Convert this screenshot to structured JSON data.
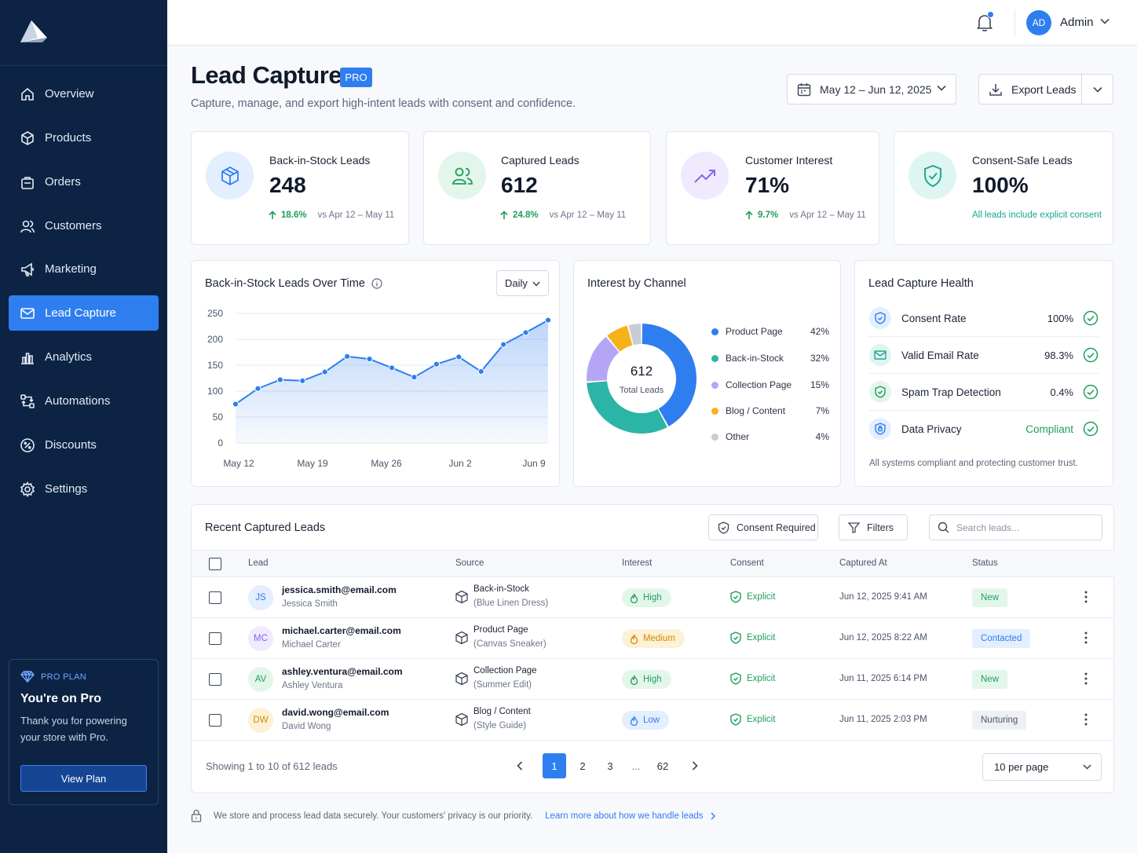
{
  "sidebar": {
    "items": [
      {
        "label": "Overview",
        "icon": "home-icon"
      },
      {
        "label": "Products",
        "icon": "box-icon"
      },
      {
        "label": "Orders",
        "icon": "bag-icon"
      },
      {
        "label": "Customers",
        "icon": "users-icon"
      },
      {
        "label": "Marketing",
        "icon": "megaphone-icon"
      },
      {
        "label": "Lead Capture",
        "icon": "mail-icon",
        "active": true
      },
      {
        "label": "Analytics",
        "icon": "chart-icon"
      },
      {
        "label": "Automations",
        "icon": "workflow-icon"
      },
      {
        "label": "Discounts",
        "icon": "percent-icon"
      },
      {
        "label": "Settings",
        "icon": "gear-icon"
      }
    ],
    "pro": {
      "tag": "PRO PLAN",
      "title": "You're on Pro",
      "text": "Thank you for powering your store with Pro.",
      "button": "View Plan"
    }
  },
  "topbar": {
    "avatar_initials": "AD",
    "user": "Admin"
  },
  "header": {
    "title": "Lead Capture",
    "badge": "PRO",
    "subtitle": "Capture, manage, and export high-intent leads with consent and confidence.",
    "date_range": "May 12 – Jun 12, 2025",
    "export_label": "Export Leads"
  },
  "kpis": [
    {
      "label": "Back-in-Stock Leads",
      "value": "248",
      "change": "18.6%",
      "compare": "vs Apr 12 – May 11"
    },
    {
      "label": "Captured Leads",
      "value": "612",
      "change": "24.8%",
      "compare": "vs Apr 12 – May 11"
    },
    {
      "label": "Customer Interest",
      "value": "71%",
      "change": "9.7%",
      "compare": "vs Apr 12 – May 11"
    },
    {
      "label": "Consent-Safe Leads",
      "value": "100%",
      "note": "All leads include explicit consent"
    }
  ],
  "line_chart": {
    "title": "Back-in-Stock Leads Over Time",
    "period": "Daily",
    "yticks": [
      "250",
      "200",
      "150",
      "100",
      "50",
      "0"
    ],
    "xticks": [
      "May 12",
      "May 19",
      "May 26",
      "Jun 2",
      "Jun 9"
    ]
  },
  "donut": {
    "title": "Interest by Channel",
    "total": "612",
    "total_label": "Total Leads",
    "segments": [
      {
        "label": "Product Page",
        "pct": "42%",
        "value": 42,
        "color": "#2f7ef0"
      },
      {
        "label": "Back-in-Stock",
        "pct": "32%",
        "value": 32,
        "color": "#2bb5a6"
      },
      {
        "label": "Collection Page",
        "pct": "15%",
        "value": 15,
        "color": "#b5a6f5"
      },
      {
        "label": "Blog / Content",
        "pct": "7%",
        "value": 7,
        "color": "#f6b21a"
      },
      {
        "label": "Other",
        "pct": "4%",
        "value": 4,
        "color": "#c8ccd3"
      }
    ]
  },
  "health": {
    "title": "Lead Capture Health",
    "rows": [
      {
        "label": "Consent Rate",
        "value": "100%"
      },
      {
        "label": "Valid Email Rate",
        "value": "98.3%"
      },
      {
        "label": "Spam Trap Detection",
        "value": "0.4%"
      },
      {
        "label": "Data Privacy",
        "value": "Compliant"
      }
    ],
    "footer": "All systems compliant and protecting customer trust."
  },
  "table": {
    "title": "Recent Captured Leads",
    "consent_filter": "Consent Required",
    "filters": "Filters",
    "search_placeholder": "Search leads...",
    "columns": [
      "Lead",
      "Source",
      "Interest",
      "Consent",
      "Captured At",
      "Status"
    ],
    "rows": [
      {
        "initials": "JS",
        "email": "jessica.smith@email.com",
        "name": "Jessica Smith",
        "source": "Back-in-Stock",
        "source_detail": "(Blue Linen Dress)",
        "interest": "High",
        "consent": "Explicit",
        "captured": "Jun 12, 2025 9:41 AM",
        "status": "New"
      },
      {
        "initials": "MC",
        "email": "michael.carter@email.com",
        "name": "Michael Carter",
        "source": "Product Page",
        "source_detail": "(Canvas Sneaker)",
        "interest": "Medium",
        "consent": "Explicit",
        "captured": "Jun 12, 2025 8:22 AM",
        "status": "Contacted"
      },
      {
        "initials": "AV",
        "email": "ashley.ventura@email.com",
        "name": "Ashley Ventura",
        "source": "Collection Page",
        "source_detail": "(Summer Edit)",
        "interest": "High",
        "consent": "Explicit",
        "captured": "Jun 11, 2025 6:14 PM",
        "status": "New"
      },
      {
        "initials": "DW",
        "email": "david.wong@email.com",
        "name": "David Wong",
        "source": "Blog / Content",
        "source_detail": "(Style Guide)",
        "interest": "Low",
        "consent": "Explicit",
        "captured": "Jun 11, 2025 2:03 PM",
        "status": "Nurturing"
      }
    ],
    "showing": "Showing 1 to 10 of 612 leads",
    "pages": [
      "1",
      "2",
      "3",
      "...",
      "62"
    ],
    "per_page": "10 per page"
  },
  "footer": {
    "note": "We store and process lead data securely. Your customers' privacy is our priority.",
    "link": "Learn more about how we handle leads"
  },
  "chart_data": {
    "type": "area",
    "title": "Back-in-Stock Leads Over Time",
    "x": [
      "May 12",
      "May 14",
      "May 16",
      "May 18",
      "May 19",
      "May 21",
      "May 23",
      "May 25",
      "May 27",
      "May 29",
      "May 31",
      "Jun 2",
      "Jun 5",
      "Jun 8",
      "Jun 12"
    ],
    "values": [
      75,
      105,
      122,
      120,
      137,
      167,
      162,
      145,
      127,
      152,
      166,
      138,
      190,
      213,
      237
    ],
    "ylim": [
      0,
      250
    ],
    "yticks": [
      0,
      50,
      100,
      150,
      200,
      250
    ],
    "grid": true,
    "color": "#2f7ef0"
  }
}
